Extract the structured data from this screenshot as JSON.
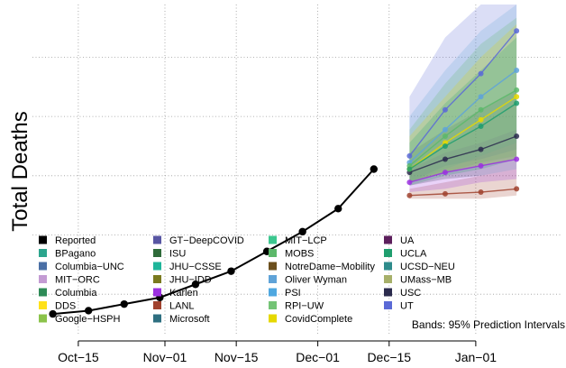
{
  "chart_data": {
    "type": "line",
    "title": "",
    "xlabel": "",
    "ylabel": "Total Deaths",
    "x_tick_labels": [
      "Oct−15",
      "Nov−01",
      "Nov−15",
      "Dec−01",
      "Dec−15",
      "Jan−01"
    ],
    "x_tick_dates": [
      "2020-10-15",
      "2020-11-01",
      "2020-11-15",
      "2020-12-01",
      "2020-12-15",
      "2021-01-01"
    ],
    "xlim": [
      "2020-10-06",
      "2021-01-18"
    ],
    "ylim": [
      0,
      100
    ],
    "y_gridlines": [
      12,
      30,
      48,
      66,
      84
    ],
    "grid": true,
    "y_scale_note": "y-axis tick values not printed; values in relative units of the plotted range",
    "annotation": "Bands: 95% Prediction Intervals",
    "legend_position": "bottom-left",
    "legend": [
      {
        "name": "Reported",
        "color": "#000000"
      },
      {
        "name": "BPagano",
        "color": "#2ca58d"
      },
      {
        "name": "Columbia−UNC",
        "color": "#4a6fa5"
      },
      {
        "name": "MIT−ORC",
        "color": "#c39bd3"
      },
      {
        "name": "Columbia",
        "color": "#2e8b57"
      },
      {
        "name": "DDS",
        "color": "#ffe11a"
      },
      {
        "name": "Google−HSPH",
        "color": "#8bc34a"
      },
      {
        "name": "GT−DeepCOVID",
        "color": "#5856a3"
      },
      {
        "name": "ISU",
        "color": "#2f6b3a"
      },
      {
        "name": "JHU−CSSE",
        "color": "#1fb59a"
      },
      {
        "name": "JHU−IDD",
        "color": "#7a7a1f"
      },
      {
        "name": "Karlen",
        "color": "#9b30e0"
      },
      {
        "name": "LANL",
        "color": "#a0422e"
      },
      {
        "name": "Microsoft",
        "color": "#2e6f80"
      },
      {
        "name": "MIT−LCP",
        "color": "#3cc78f"
      },
      {
        "name": "MOBS",
        "color": "#5cb86a"
      },
      {
        "name": "NotreDame−Mobility",
        "color": "#6b4f1d"
      },
      {
        "name": "Oliver Wyman",
        "color": "#5fa3d8"
      },
      {
        "name": "PSI",
        "color": "#4fa8e0"
      },
      {
        "name": "RPI−UW",
        "color": "#74c476"
      },
      {
        "name": "CovidComplete",
        "color": "#e6d800"
      },
      {
        "name": "UA",
        "color": "#5c1f5c"
      },
      {
        "name": "UCLA",
        "color": "#1f9e6e"
      },
      {
        "name": "UCSD−NEU",
        "color": "#2e8b8b"
      },
      {
        "name": "UMass−MB",
        "color": "#a7b06a"
      },
      {
        "name": "USC",
        "color": "#2b2b4d"
      },
      {
        "name": "UT",
        "color": "#5b6ad6"
      }
    ],
    "series": [
      {
        "name": "Reported",
        "color": "#000000",
        "x": [
          "2020-10-10",
          "2020-10-17",
          "2020-10-24",
          "2020-10-31",
          "2020-11-07",
          "2020-11-14",
          "2020-11-21",
          "2020-11-28",
          "2020-12-05",
          "2020-12-12"
        ],
        "y": [
          6,
          7,
          9,
          11,
          15,
          19,
          25,
          31,
          38,
          50
        ]
      }
    ],
    "forecasts": [
      {
        "name": "LANL",
        "color": "#a0422e",
        "x": [
          "2020-12-19",
          "2020-12-26",
          "2021-01-02",
          "2021-01-09"
        ],
        "y": [
          42,
          42.5,
          43,
          44
        ],
        "lower": [
          41,
          41,
          41,
          42
        ],
        "upper": [
          44,
          46,
          48,
          50
        ]
      },
      {
        "name": "Karlen",
        "color": "#9b30e0",
        "x": [
          "2020-12-19",
          "2020-12-26",
          "2021-01-02",
          "2021-01-09"
        ],
        "y": [
          46,
          49,
          51,
          53
        ],
        "lower": [
          43,
          44,
          46,
          47
        ],
        "upper": [
          50,
          55,
          58,
          62
        ]
      },
      {
        "name": "USC",
        "color": "#2b2b4d",
        "x": [
          "2020-12-19",
          "2020-12-26",
          "2021-01-02",
          "2021-01-09"
        ],
        "y": [
          49,
          53,
          56,
          60
        ],
        "lower": [
          45,
          47,
          48,
          50
        ],
        "upper": [
          55,
          62,
          68,
          74
        ]
      },
      {
        "name": "UT",
        "color": "#5b6ad6",
        "x": [
          "2020-12-19",
          "2020-12-26",
          "2021-01-02",
          "2021-01-09"
        ],
        "y": [
          54,
          68,
          79,
          92
        ],
        "lower": [
          46,
          51,
          53,
          56
        ],
        "upper": [
          72,
          90,
          100,
          100
        ]
      },
      {
        "name": "Oliver Wyman",
        "color": "#5fa3d8",
        "x": [
          "2020-12-19",
          "2020-12-26",
          "2021-01-02",
          "2021-01-09"
        ],
        "y": [
          52,
          62,
          72,
          80
        ],
        "lower": [
          46,
          50,
          54,
          58
        ],
        "upper": [
          66,
          80,
          92,
          100
        ]
      },
      {
        "name": "MOBS",
        "color": "#5cb86a",
        "x": [
          "2020-12-19",
          "2020-12-26",
          "2021-01-02",
          "2021-01-09"
        ],
        "y": [
          51,
          60,
          68,
          74
        ],
        "lower": [
          46,
          49,
          52,
          54
        ],
        "upper": [
          62,
          76,
          88,
          96
        ]
      },
      {
        "name": "CovidComplete",
        "color": "#e6d800",
        "x": [
          "2020-12-19",
          "2020-12-26",
          "2021-01-02",
          "2021-01-09"
        ],
        "y": [
          50,
          58,
          65,
          72
        ],
        "lower": [
          46,
          49,
          51,
          53
        ],
        "upper": [
          60,
          72,
          84,
          94
        ]
      },
      {
        "name": "UCLA",
        "color": "#1f9e6e",
        "x": [
          "2020-12-19",
          "2020-12-26",
          "2021-01-02",
          "2021-01-09"
        ],
        "y": [
          50,
          57,
          63,
          70
        ],
        "lower": [
          45,
          48,
          50,
          53
        ],
        "upper": [
          58,
          70,
          80,
          90
        ]
      }
    ]
  }
}
